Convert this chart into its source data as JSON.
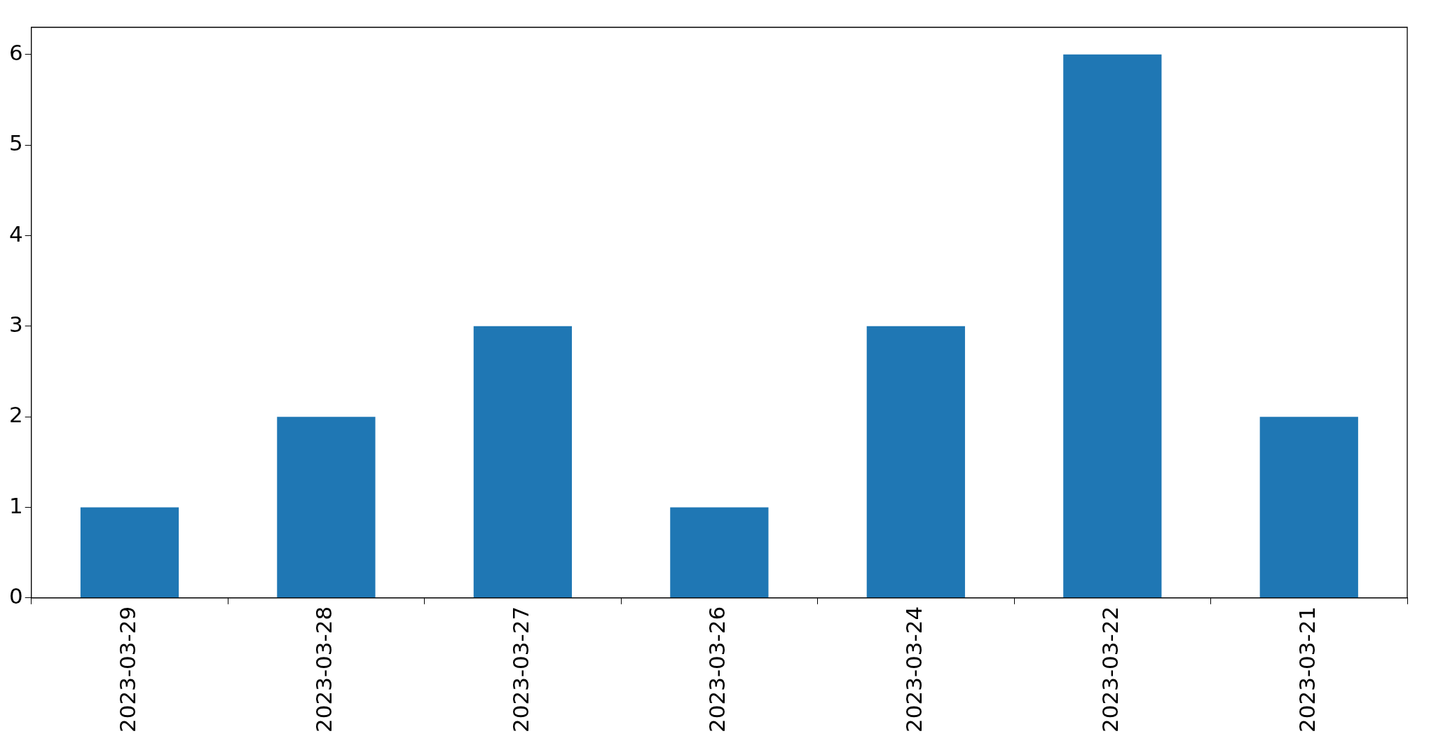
{
  "chart_data": {
    "type": "bar",
    "categories": [
      "2023-03-29",
      "2023-03-28",
      "2023-03-27",
      "2023-03-26",
      "2023-03-24",
      "2023-03-22",
      "2023-03-21"
    ],
    "values": [
      1,
      2,
      3,
      1,
      3,
      6,
      2
    ],
    "color": "#1f77b4",
    "ylim": [
      0,
      6.3
    ],
    "yticks": [
      0,
      1,
      2,
      3,
      4,
      5,
      6
    ],
    "legend": false
  }
}
